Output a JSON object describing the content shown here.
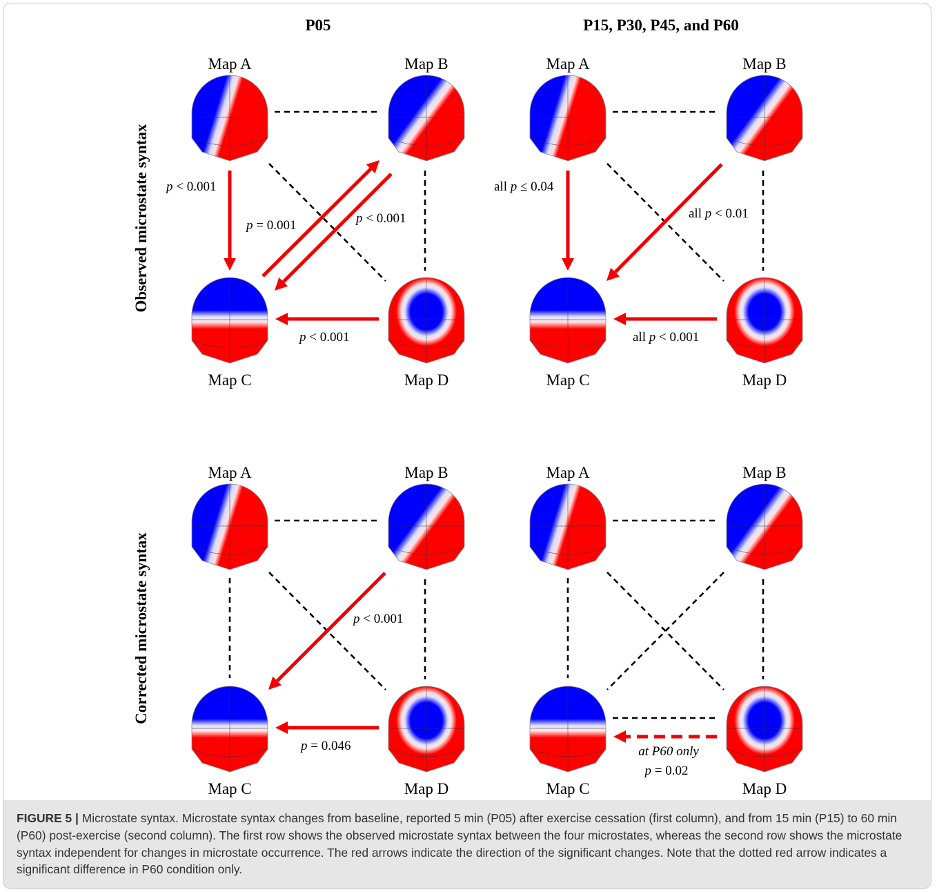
{
  "figure": {
    "col_titles": [
      "P05",
      "P15, P30, P45, and P60"
    ],
    "row_titles": [
      "Observed microstate syntax",
      "Corrected microstate syntax"
    ],
    "map_labels": {
      "a": "Map A",
      "b": "Map B",
      "c": "Map C",
      "d": "Map D"
    },
    "colors": {
      "positive": "#ff0000",
      "negative": "#0000ff",
      "arrow": "#f00000",
      "link": "#000000"
    },
    "panels": [
      {
        "id": "observed-p05",
        "dashed_links": [
          "A-B",
          "A-D",
          "B-D"
        ],
        "arrows": [
          {
            "from": "A",
            "to": "C",
            "label_prefix": "",
            "label_p": "p",
            "label_rest": " < 0.001"
          },
          {
            "from": "C",
            "to": "B",
            "label_prefix": "",
            "label_p": "p",
            "label_rest": " = 0.001"
          },
          {
            "from": "B",
            "to": "C",
            "label_prefix": "",
            "label_p": "p",
            "label_rest": " < 0.001"
          },
          {
            "from": "D",
            "to": "C",
            "label_prefix": "",
            "label_p": "p",
            "label_rest": " < 0.001"
          }
        ]
      },
      {
        "id": "observed-p15-p60",
        "dashed_links": [
          "A-B",
          "A-D",
          "B-D"
        ],
        "arrows": [
          {
            "from": "A",
            "to": "C",
            "label_prefix": "all ",
            "label_p": "p",
            "label_rest": " ≤ 0.04"
          },
          {
            "from": "B",
            "to": "C",
            "label_prefix": "all ",
            "label_p": "p",
            "label_rest": " < 0.01"
          },
          {
            "from": "D",
            "to": "C",
            "label_prefix": "all ",
            "label_p": "p",
            "label_rest": " < 0.001"
          }
        ]
      },
      {
        "id": "corrected-p05",
        "dashed_links": [
          "A-B",
          "A-C",
          "A-D",
          "B-D"
        ],
        "arrows": [
          {
            "from": "B",
            "to": "C",
            "label_prefix": "",
            "label_p": "p",
            "label_rest": " < 0.001"
          },
          {
            "from": "D",
            "to": "C",
            "label_prefix": "",
            "label_p": "p",
            "label_rest": " = 0.046"
          }
        ]
      },
      {
        "id": "corrected-p15-p60",
        "dashed_links": [
          "A-B",
          "A-C",
          "A-D",
          "B-C",
          "B-D",
          "C-D"
        ],
        "arrows": [
          {
            "from": "D",
            "to": "C",
            "dashed": true,
            "note": "at P60 only",
            "label_prefix": "",
            "label_p": "p",
            "label_rest": " = 0.02"
          }
        ]
      }
    ]
  },
  "caption": {
    "label": "FIGURE 5 |",
    "text": " Microstate syntax. Microstate syntax changes from baseline, reported 5 min (P05) after exercise cessation (first column), and from 15 min (P15) to 60 min (P60) post-exercise (second column). The first row shows the observed microstate syntax between the four microstates, whereas the second row shows the microstate syntax independent for changes in microstate occurrence. The red arrows indicate the direction of the significant changes. Note that the dotted red arrow indicates a significant difference in P60 condition only."
  }
}
